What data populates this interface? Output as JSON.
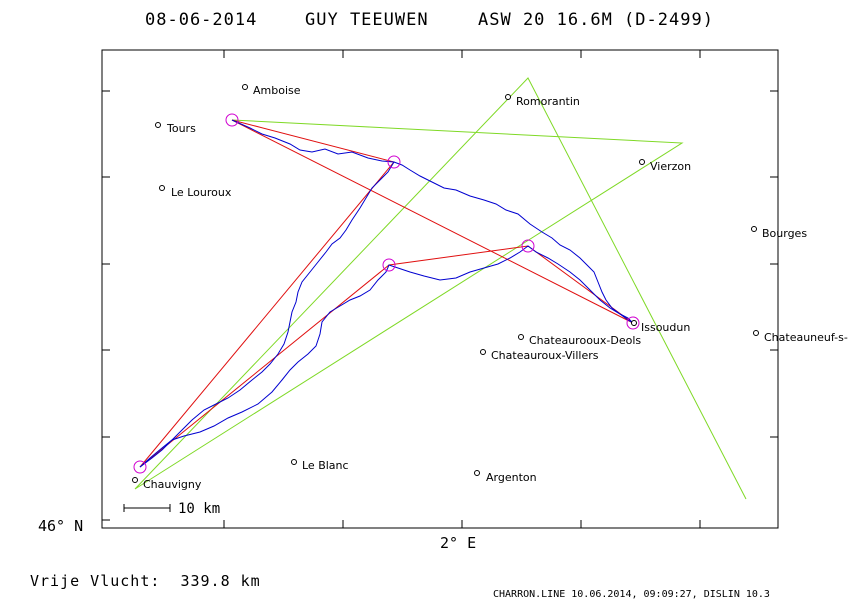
{
  "header": {
    "date": "08-06-2014",
    "pilot": "GUY TEEUWEN",
    "glider": "ASW 20 16.6M (D-2499)"
  },
  "axes": {
    "lat_label": "46° N",
    "lon_label": "2° E"
  },
  "scale_label": "10 km",
  "distance_label": "Vrije Vlucht:  339.8 km",
  "footer": "CHARRON.LINE 10.06.2014, 09:09:27, DISLIN 10.3",
  "colors": {
    "task_lines": "#7fd926",
    "triangle": "#e01010",
    "track": "#0000d0",
    "turnpoints": "#d000d0"
  },
  "places": [
    {
      "name": "Amboise"
    },
    {
      "name": "Romorantin"
    },
    {
      "name": "Tours"
    },
    {
      "name": "Vierzon"
    },
    {
      "name": "Le Louroux"
    },
    {
      "name": "Bourges"
    },
    {
      "name": "Issoudun"
    },
    {
      "name": "Chateaurooux-Deols"
    },
    {
      "name": "Chateauneuf-s-"
    },
    {
      "name": "Chateauroux-Villers"
    },
    {
      "name": "Le Blanc"
    },
    {
      "name": "Argenton"
    },
    {
      "name": "Chauvigny"
    }
  ]
}
